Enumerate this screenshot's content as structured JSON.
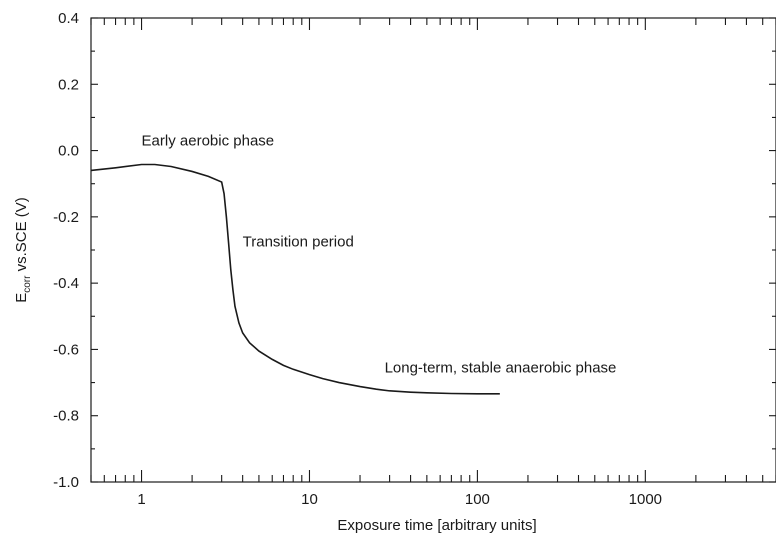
{
  "chart_data": {
    "type": "line",
    "xscale": "log",
    "xlim": [
      0.5,
      6000
    ],
    "ylim": [
      -1.0,
      0.4
    ],
    "xlabel": "Exposure time [arbitrary units]",
    "ylabel_main": "E",
    "ylabel_sub": "corr",
    "ylabel_rest": " vs.SCE (V)",
    "x_ticks": [
      {
        "value": 1,
        "label": "1"
      },
      {
        "value": 10,
        "label": "10"
      },
      {
        "value": 100,
        "label": "100"
      },
      {
        "value": 1000,
        "label": "1000"
      }
    ],
    "y_ticks": [
      {
        "value": 0.4,
        "label": "0.4"
      },
      {
        "value": 0.2,
        "label": "0.2"
      },
      {
        "value": 0.0,
        "label": "0.0"
      },
      {
        "value": -0.2,
        "label": "-0.2"
      },
      {
        "value": -0.4,
        "label": "-0.4"
      },
      {
        "value": -0.6,
        "label": "-0.6"
      },
      {
        "value": -0.8,
        "label": "-0.8"
      },
      {
        "value": -1.0,
        "label": "-1.0"
      }
    ],
    "y_minor_step": 0.1,
    "series": [
      {
        "x": [
          0.5,
          0.7,
          1.0,
          1.2,
          1.5,
          2.0,
          2.5,
          3.0,
          3.1,
          3.2,
          3.3,
          3.4,
          3.5,
          3.6,
          3.8,
          4.0,
          4.4,
          5.0,
          6.0,
          7.0,
          8.0,
          10,
          12,
          15,
          20,
          25,
          30,
          40,
          50,
          70,
          100,
          136
        ],
        "y": [
          -0.06,
          -0.052,
          -0.042,
          -0.042,
          -0.048,
          -0.063,
          -0.078,
          -0.095,
          -0.13,
          -0.2,
          -0.28,
          -0.36,
          -0.42,
          -0.47,
          -0.52,
          -0.55,
          -0.58,
          -0.605,
          -0.63,
          -0.648,
          -0.66,
          -0.676,
          -0.688,
          -0.7,
          -0.712,
          -0.72,
          -0.725,
          -0.729,
          -0.731,
          -0.733,
          -0.734,
          -0.734
        ],
        "color": "#1a1a1a"
      }
    ],
    "annotations": [
      {
        "text": "Early aerobic phase",
        "x": 1.0,
        "y": 0.015
      },
      {
        "text": "Transition period",
        "x": 4.0,
        "y": -0.29
      },
      {
        "text": "Long-term, stable anaerobic phase",
        "x": 28,
        "y": -0.67
      }
    ],
    "grid": false
  }
}
